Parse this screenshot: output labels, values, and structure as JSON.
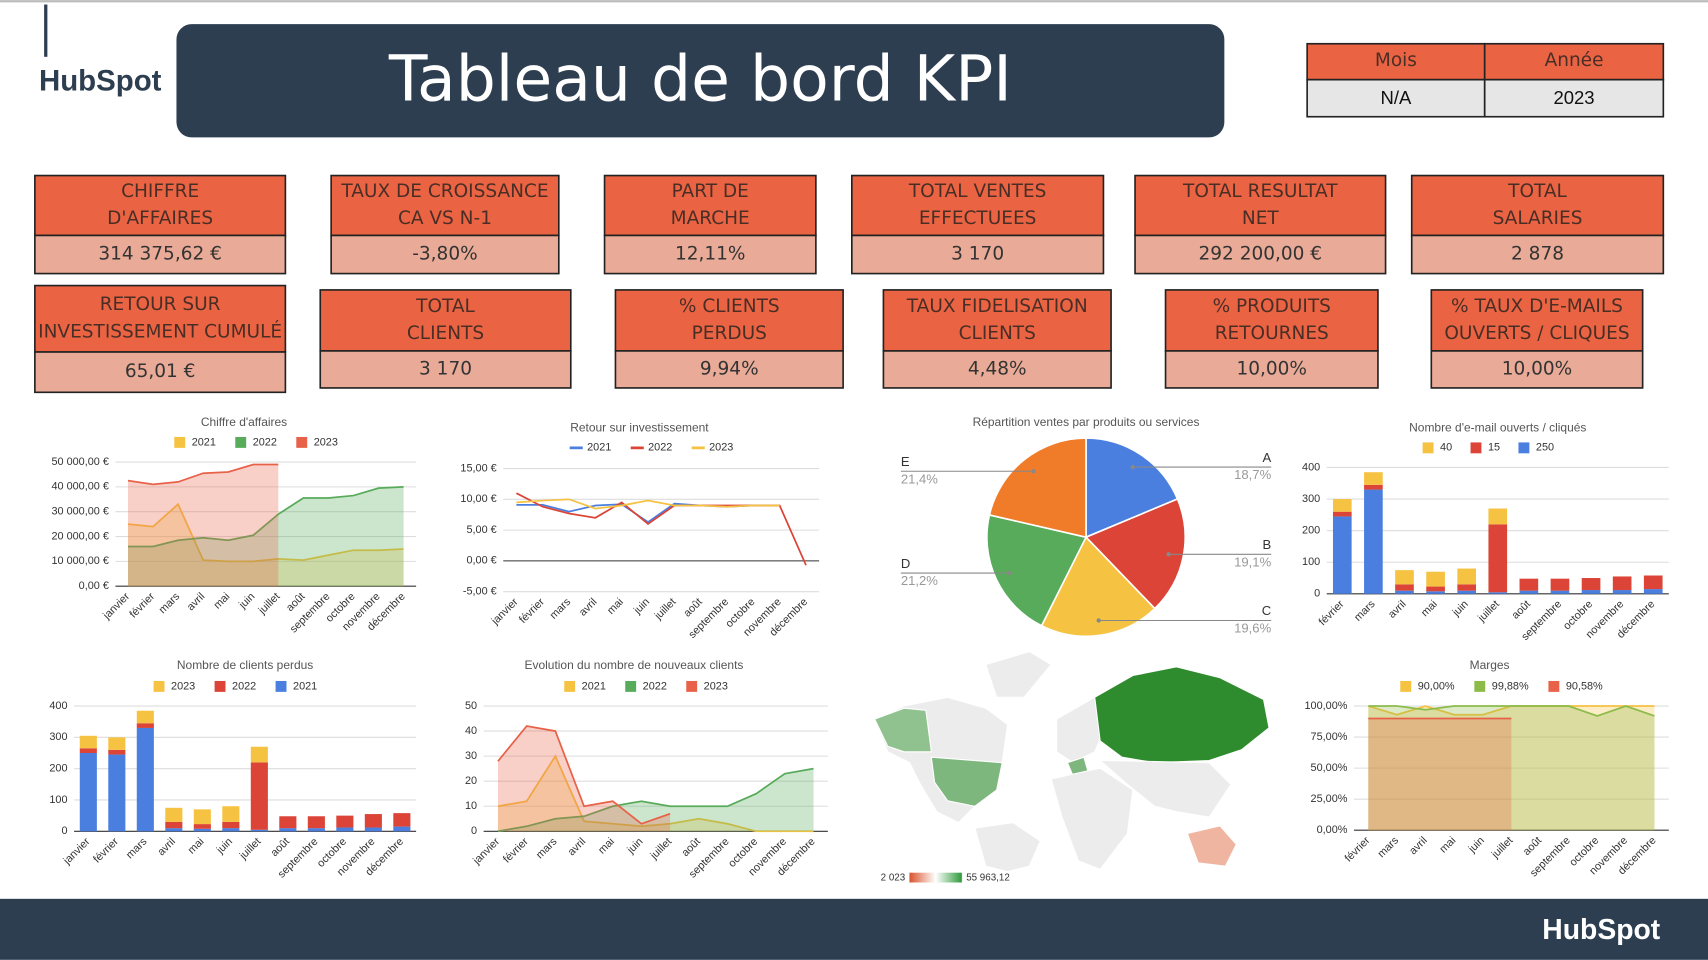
{
  "logo": "HubSpot",
  "header": {
    "title": "Tableau de bord KPI"
  },
  "period": {
    "headers": [
      "Mois",
      "Année"
    ],
    "values": [
      "N/A",
      "2023"
    ]
  },
  "kpis": [
    {
      "label": [
        "CHIFFRE",
        "D'AFFAIRES"
      ],
      "value": "314 375,62 €"
    },
    {
      "label": [
        "TAUX DE CROISSANCE",
        "CA VS N-1"
      ],
      "value": "-3,80%"
    },
    {
      "label": [
        "PART DE",
        "MARCHE"
      ],
      "value": "12,11%"
    },
    {
      "label": [
        "TOTAL VENTES",
        "EFFECTUEES"
      ],
      "value": "3 170"
    },
    {
      "label": [
        "TOTAL RESULTAT",
        "NET"
      ],
      "value": "292 200,00 €"
    },
    {
      "label": [
        "TOTAL",
        "SALARIES"
      ],
      "value": "2 878"
    },
    {
      "label": [
        "RETOUR SUR",
        "INVESTISSEMENT CUMULÉ"
      ],
      "value": "65,01 €"
    },
    {
      "label": [
        "TOTAL",
        "CLIENTS"
      ],
      "value": "3 170"
    },
    {
      "label": [
        "% CLIENTS",
        "PERDUS"
      ],
      "value": "9,94%"
    },
    {
      "label": [
        "TAUX FIDELISATION",
        "CLIENTS"
      ],
      "value": "4,48%"
    },
    {
      "label": [
        "% PRODUITS",
        "RETOURNES"
      ],
      "value": "10,00%"
    },
    {
      "label": [
        "% TAUX D'E-MAILS",
        "OUVERTS / CLIQUES"
      ],
      "value": "10,00%"
    }
  ],
  "chart_data": [
    {
      "type": "area",
      "title": "Chiffre d'affaires",
      "categories": [
        "janvier",
        "février",
        "mars",
        "avril",
        "mai",
        "juin",
        "juillet",
        "août",
        "septembre",
        "octobre",
        "novembre",
        "décembre"
      ],
      "series": [
        {
          "name": "2021",
          "color": "#f5c242",
          "values": [
            25000,
            24000,
            33000,
            10500,
            10000,
            10000,
            11000,
            10500,
            12500,
            14500,
            14500,
            15000
          ]
        },
        {
          "name": "2022",
          "color": "#57ab5a",
          "values": [
            16000,
            16000,
            18500,
            19500,
            18500,
            20500,
            29000,
            35500,
            35500,
            36500,
            39500,
            40000
          ]
        },
        {
          "name": "2023",
          "color": "#e8624a",
          "values": [
            42500,
            41000,
            42000,
            45500,
            46000,
            49000,
            49000,
            null,
            null,
            null,
            null,
            null
          ]
        }
      ],
      "ylim": [
        0,
        50000
      ],
      "yticks": [
        {
          "value": 0,
          "label": "0,00 €"
        },
        {
          "value": 10000,
          "label": "10 000,00 €"
        },
        {
          "value": 20000,
          "label": "20 000,00 €"
        },
        {
          "value": 30000,
          "label": "30 000,00 €"
        },
        {
          "value": 40000,
          "label": "40 000,00 €"
        },
        {
          "value": 50000,
          "label": "50 000,00 €"
        }
      ],
      "grid": true
    },
    {
      "type": "line",
      "title": "Retour sur investissement",
      "categories": [
        "janvier",
        "février",
        "mars",
        "avril",
        "mai",
        "juin",
        "juillet",
        "août",
        "septembre",
        "octobre",
        "novembre",
        "décembre"
      ],
      "series": [
        {
          "name": "2021",
          "color": "#4a7fe0",
          "values": [
            9.1,
            9.1,
            8.0,
            9.0,
            9.2,
            6.3,
            9.3,
            9.0,
            8.8,
            9.0,
            9.0,
            null
          ]
        },
        {
          "name": "2022",
          "color": "#db4437",
          "values": [
            11.0,
            8.8,
            7.7,
            7.0,
            9.5,
            6.0,
            9.0,
            9.0,
            9.0,
            9.0,
            9.0,
            -0.7
          ]
        },
        {
          "name": "2023",
          "color": "#f5c242",
          "values": [
            9.5,
            9.8,
            10.0,
            8.5,
            9.0,
            9.8,
            9.0,
            9.0,
            8.8,
            9.0,
            9.0,
            null
          ]
        }
      ],
      "ylim": [
        -5,
        15
      ],
      "yticks": [
        {
          "value": -5,
          "label": "-5,00 €"
        },
        {
          "value": 0,
          "label": "0,00 €"
        },
        {
          "value": 5,
          "label": "5,00 €"
        },
        {
          "value": 10,
          "label": "10,00 €"
        },
        {
          "value": 15,
          "label": "15,00 €"
        }
      ],
      "grid": true
    },
    {
      "type": "pie",
      "title": "Répartition ventes par produits ou services",
      "categories": [
        "A",
        "B",
        "C",
        "D",
        "E"
      ],
      "values": [
        18.7,
        19.1,
        19.6,
        21.2,
        21.4
      ],
      "value_labels": [
        "18,7%",
        "19,1%",
        "19,6%",
        "21,2%",
        "21,4%"
      ],
      "colors": [
        "#4a7fe0",
        "#db4437",
        "#f5c242",
        "#57ab5a",
        "#f07c2a"
      ]
    },
    {
      "type": "stacked_bar",
      "title": "Nombre d'e-mail ouverts / cliqués",
      "categories": [
        "février",
        "mars",
        "avril",
        "mai",
        "juin",
        "juillet",
        "août",
        "septembre",
        "octobre",
        "novembre",
        "décembre"
      ],
      "series": [
        {
          "name": "40",
          "color": "#f5c242",
          "values": [
            40,
            40,
            45,
            47,
            50,
            50,
            0,
            0,
            0,
            0,
            0
          ]
        },
        {
          "name": "15",
          "color": "#db4437",
          "values": [
            15,
            15,
            20,
            15,
            20,
            215,
            38,
            38,
            38,
            43,
            43
          ]
        },
        {
          "name": "250",
          "color": "#4a7fe0",
          "values": [
            245,
            330,
            10,
            8,
            10,
            5,
            10,
            10,
            12,
            12,
            15
          ]
        }
      ],
      "ylim": [
        0,
        400
      ],
      "yticks": [
        0,
        100,
        200,
        300,
        400
      ],
      "grid": true
    },
    {
      "type": "stacked_bar",
      "title": "Nombre de clients perdus",
      "categories": [
        "janvier",
        "février",
        "mars",
        "avril",
        "mai",
        "juin",
        "juillet",
        "août",
        "septembre",
        "octobre",
        "novembre",
        "décembre"
      ],
      "series": [
        {
          "name": "2023",
          "color": "#f5c242",
          "values": [
            40,
            40,
            40,
            45,
            47,
            50,
            50,
            0,
            0,
            0,
            0,
            0
          ]
        },
        {
          "name": "2022",
          "color": "#db4437",
          "values": [
            15,
            15,
            15,
            20,
            15,
            20,
            215,
            38,
            38,
            38,
            43,
            43
          ]
        },
        {
          "name": "2021",
          "color": "#4a7fe0",
          "values": [
            250,
            245,
            330,
            10,
            8,
            10,
            5,
            10,
            10,
            12,
            12,
            15
          ]
        }
      ],
      "ylim": [
        0,
        400
      ],
      "yticks": [
        0,
        100,
        200,
        300,
        400
      ],
      "grid": true
    },
    {
      "type": "area",
      "title": "Evolution du nombre de nouveaux clients",
      "categories": [
        "janvier",
        "février",
        "mars",
        "avril",
        "mai",
        "juin",
        "juillet",
        "août",
        "septembre",
        "octobre",
        "novembre",
        "décembre"
      ],
      "series": [
        {
          "name": "2021",
          "color": "#f5c242",
          "values": [
            10,
            12,
            30,
            4,
            3,
            2,
            3,
            5,
            3,
            0,
            0,
            0
          ]
        },
        {
          "name": "2022",
          "color": "#57ab5a",
          "values": [
            0,
            2,
            5,
            6,
            10,
            12,
            10,
            10,
            10,
            15,
            23,
            25
          ]
        },
        {
          "name": "2023",
          "color": "#e8624a",
          "values": [
            28,
            42,
            40,
            10,
            12,
            3,
            7,
            null,
            null,
            null,
            null,
            null
          ]
        }
      ],
      "ylim": [
        0,
        50
      ],
      "yticks": [
        0,
        10,
        20,
        30,
        40,
        50
      ],
      "grid": true
    },
    {
      "type": "geo",
      "colorbar_ticks": [
        {
          "value": 2023,
          "label": "2 023"
        },
        {
          "value": 55963.12,
          "label": "55 963,12"
        }
      ]
    },
    {
      "type": "area",
      "title": "Marges",
      "categories": [
        "février",
        "mars",
        "avril",
        "mai",
        "juin",
        "juillet",
        "août",
        "septembre",
        "octobre",
        "novembre",
        "décembre"
      ],
      "series": [
        {
          "name": "90,00%",
          "color": "#f5c242",
          "values": [
            100,
            93,
            100,
            93,
            93,
            100,
            100,
            100,
            100,
            100,
            100
          ]
        },
        {
          "name": "99,88%",
          "color": "#8dbb4a",
          "values": [
            100,
            100,
            97,
            100,
            100,
            100,
            100,
            100,
            92,
            100,
            92
          ]
        },
        {
          "name": "90,58%",
          "color": "#e8624a",
          "values": [
            90,
            90,
            90,
            90,
            90,
            90,
            null,
            null,
            null,
            null,
            null
          ]
        }
      ],
      "ylim": [
        0,
        100
      ],
      "yticks": [
        {
          "value": 0,
          "label": "0,00%"
        },
        {
          "value": 25,
          "label": "25,00%"
        },
        {
          "value": 50,
          "label": "50,00%"
        },
        {
          "value": 75,
          "label": "75,00%"
        },
        {
          "value": 100,
          "label": "100,00%"
        }
      ],
      "grid": true
    }
  ]
}
